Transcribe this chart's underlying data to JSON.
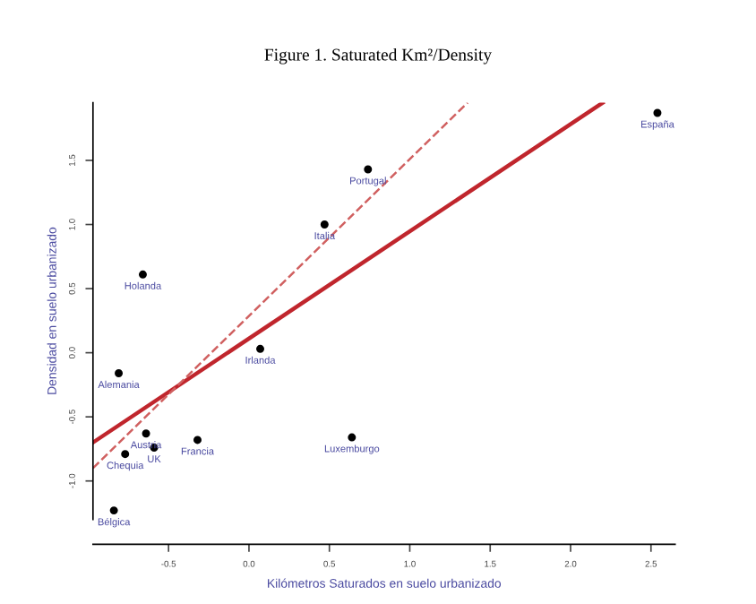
{
  "chart_data": {
    "type": "scatter",
    "title": "Figure 1. Saturated Km²/Density",
    "xlabel": "Kilómetros Saturados en suelo urbanizado",
    "ylabel": "Densidad en suelo urbanizado",
    "series": [
      {
        "color": "#000000",
        "marker": "circle",
        "x": [
          0.74,
          0.47,
          -0.66,
          0.07,
          -0.81,
          -0.64,
          -0.59,
          -0.32,
          0.64,
          -0.77,
          -0.84,
          2.54
        ],
        "values": [
          1.43,
          1.0,
          0.61,
          0.03,
          -0.16,
          -0.63,
          -0.74,
          -0.68,
          -0.66,
          -0.79,
          -1.23,
          1.87
        ]
      },
      {
        "type": "line",
        "color": "#c0262d",
        "line_style": "solid",
        "x": [
          -0.97,
          2.2
        ],
        "values": [
          -0.7,
          1.95
        ]
      },
      {
        "type": "line",
        "color": "#d06060",
        "line_style": "dashed",
        "x": [
          -0.97,
          1.36
        ],
        "values": [
          -0.9,
          1.95
        ]
      }
    ],
    "annotations": [
      {
        "text": "Portugal",
        "x": 0.74,
        "y": 1.43
      },
      {
        "text": "Italia",
        "x": 0.47,
        "y": 1.0
      },
      {
        "text": "Holanda",
        "x": -0.66,
        "y": 0.61
      },
      {
        "text": "Irlanda",
        "x": 0.07,
        "y": 0.03
      },
      {
        "text": "Alemania",
        "x": -0.81,
        "y": -0.16
      },
      {
        "text": "Austria",
        "x": -0.64,
        "y": -0.63
      },
      {
        "text": "UK",
        "x": -0.59,
        "y": -0.74
      },
      {
        "text": "Francia",
        "x": -0.32,
        "y": -0.68
      },
      {
        "text": "Luxemburgo",
        "x": 0.64,
        "y": -0.66
      },
      {
        "text": "Chequia",
        "x": -0.77,
        "y": -0.79
      },
      {
        "text": "Bélgica",
        "x": -0.84,
        "y": -1.23
      },
      {
        "text": "España",
        "x": 2.54,
        "y": 1.87
      }
    ],
    "xlim": [
      -0.97,
      2.65
    ],
    "ylim": [
      -1.3,
      1.95
    ],
    "xticks": [
      -0.5,
      {
        "value": 0,
        "label": "0.0"
      },
      0.5,
      {
        "value": 1,
        "label": "1.0"
      },
      1.5,
      {
        "value": 2,
        "label": "2.0"
      },
      2.5
    ],
    "yticks": [
      {
        "value": -1,
        "label": "-1.0"
      },
      -0.5,
      {
        "value": 0,
        "label": "0.0"
      },
      0.5,
      {
        "value": 1,
        "label": "1.0"
      },
      1.5
    ],
    "grid": false,
    "legend": false
  }
}
